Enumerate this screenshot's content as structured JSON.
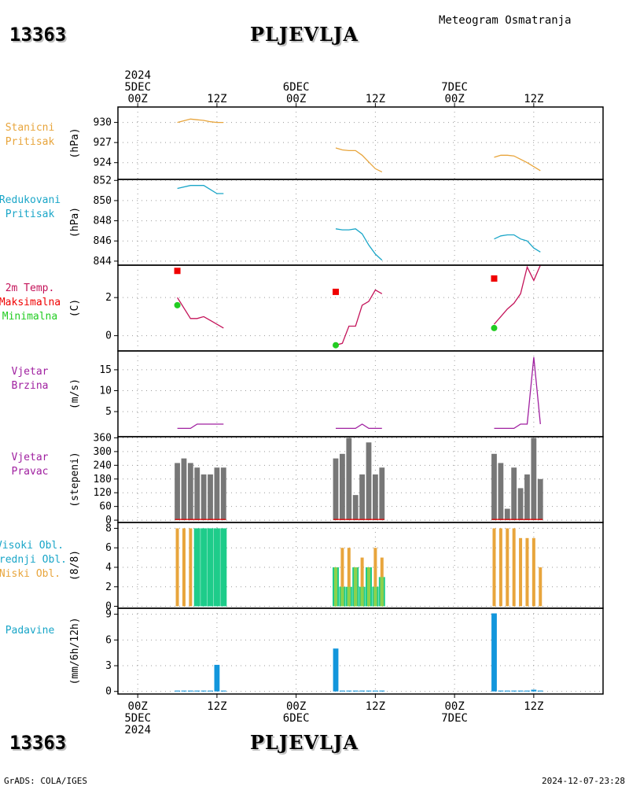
{
  "header": {
    "station_id": "13363",
    "station_name": "PLJEVLJA",
    "title": "Meteogram Osmatranja"
  },
  "footer": {
    "credit": "GrADS: COLA/IGES",
    "timestamp": "2024-12-07-23:28"
  },
  "time_axis": {
    "top_labels": [
      {
        "hour": 0,
        "lines": [
          "2024",
          "5DEC",
          "00Z"
        ]
      },
      {
        "hour": 12,
        "lines": [
          "12Z"
        ]
      },
      {
        "hour": 24,
        "lines": [
          "6DEC",
          "00Z"
        ]
      },
      {
        "hour": 36,
        "lines": [
          "12Z"
        ]
      },
      {
        "hour": 48,
        "lines": [
          "7DEC",
          "00Z"
        ]
      },
      {
        "hour": 60,
        "lines": [
          "12Z"
        ]
      }
    ],
    "bottom_labels": [
      {
        "hour": 0,
        "lines": [
          "00Z",
          "5DEC",
          "2024"
        ]
      },
      {
        "hour": 12,
        "lines": [
          "12Z"
        ]
      },
      {
        "hour": 24,
        "lines": [
          "00Z",
          "6DEC"
        ]
      },
      {
        "hour": 36,
        "lines": [
          "12Z"
        ]
      },
      {
        "hour": 48,
        "lines": [
          "00Z",
          "7DEC"
        ]
      },
      {
        "hour": 60,
        "lines": [
          "12Z"
        ]
      }
    ],
    "range_hours": [
      -3,
      70.5
    ]
  },
  "colors": {
    "orange": "#e8a53c",
    "cyan": "#1aa6c8",
    "magenta": "#c4145a",
    "red": "#f00000",
    "green": "#22cc22",
    "purple": "#a020a0",
    "gray": "#777777",
    "teal": "#1ecc8a",
    "lightgreen": "#8cd24c",
    "blue": "#1296dc"
  },
  "chart_data": [
    {
      "type": "line",
      "panel": "station_pressure",
      "label_lines": [
        {
          "text": "Stanicni",
          "color": "orange"
        },
        {
          "text": "Pritisak",
          "color": "orange"
        }
      ],
      "ylabel": "(hPa)",
      "ylim": [
        921.5,
        932.3
      ],
      "yticks": [
        924,
        927,
        930
      ],
      "series": [
        {
          "color": "orange",
          "x": [
            6,
            8,
            9,
            10,
            11,
            12,
            13
          ],
          "y": [
            930.0,
            930.5,
            930.4,
            930.3,
            930.1,
            930.0,
            930.0
          ]
        },
        {
          "color": "orange",
          "x": [
            30,
            31,
            32,
            33,
            34,
            35,
            36,
            37
          ],
          "y": [
            926.2,
            925.9,
            925.8,
            925.8,
            925.1,
            924.1,
            923.1,
            922.6
          ]
        },
        {
          "color": "orange",
          "x": [
            54,
            55,
            56,
            57,
            58,
            59,
            60,
            61
          ],
          "y": [
            924.8,
            925.1,
            925.1,
            925.0,
            924.5,
            924.0,
            923.4,
            922.8
          ]
        }
      ]
    },
    {
      "type": "line",
      "panel": "reduced_pressure",
      "label_lines": [
        {
          "text": "Redukovani",
          "color": "cyan"
        },
        {
          "text": "Pritisak",
          "color": "cyan"
        }
      ],
      "ylabel": "(hPa)",
      "ylim": [
        843.6,
        852.1
      ],
      "yticks": [
        844,
        846,
        848,
        850,
        852
      ],
      "series": [
        {
          "color": "cyan",
          "x": [
            6,
            8,
            9,
            10,
            11,
            12,
            13
          ],
          "y": [
            851.2,
            851.5,
            851.5,
            851.5,
            851.1,
            850.7,
            850.7
          ]
        },
        {
          "color": "cyan",
          "x": [
            30,
            31,
            32,
            33,
            34,
            35,
            36,
            37
          ],
          "y": [
            847.2,
            847.1,
            847.1,
            847.2,
            846.7,
            845.6,
            844.7,
            844.1
          ]
        },
        {
          "color": "cyan",
          "x": [
            54,
            55,
            56,
            57,
            58,
            59,
            60,
            61
          ],
          "y": [
            846.2,
            846.5,
            846.6,
            846.6,
            846.2,
            846.0,
            845.3,
            844.9
          ]
        }
      ]
    },
    {
      "type": "line",
      "panel": "temperature",
      "label_lines": [
        {
          "text": "2m Temp.",
          "color": "magenta"
        },
        {
          "text": "Maksimalna",
          "color": "red"
        },
        {
          "text": "Minimalna",
          "color": "green"
        }
      ],
      "ylabel": "(C)",
      "ylim": [
        -0.8,
        3.7
      ],
      "yticks": [
        0,
        2
      ],
      "series": [
        {
          "color": "magenta",
          "x": [
            6,
            8,
            9,
            10,
            11,
            12,
            13
          ],
          "y": [
            2.0,
            0.9,
            0.9,
            1.0,
            0.8,
            0.6,
            0.4
          ]
        },
        {
          "color": "magenta",
          "x": [
            30,
            31,
            32,
            33,
            34,
            35,
            36,
            37
          ],
          "y": [
            -0.5,
            -0.4,
            0.5,
            0.5,
            1.6,
            1.8,
            2.4,
            2.2
          ]
        },
        {
          "color": "magenta",
          "x": [
            54,
            55,
            56,
            57,
            58,
            59,
            60,
            61
          ],
          "y": [
            0.6,
            1.0,
            1.4,
            1.7,
            2.2,
            3.6,
            2.9,
            3.7
          ]
        }
      ],
      "max_markers": {
        "color": "red",
        "x": [
          6,
          30,
          54
        ],
        "y": [
          3.4,
          2.3,
          3.0
        ]
      },
      "min_markers": {
        "color": "green",
        "x": [
          6,
          30,
          54
        ],
        "y": [
          1.6,
          -0.5,
          0.4
        ]
      }
    },
    {
      "type": "line",
      "panel": "wind_speed",
      "label_lines": [
        {
          "text": "Vjetar",
          "color": "purple"
        },
        {
          "text": "Brzina",
          "color": "purple"
        }
      ],
      "ylabel": "(m/s)",
      "ylim": [
        -1,
        19.5
      ],
      "yticks": [
        5,
        10,
        15
      ],
      "series": [
        {
          "color": "purple",
          "x": [
            6,
            8,
            9,
            10,
            11,
            12,
            13
          ],
          "y": [
            1,
            1,
            2,
            2,
            2,
            2,
            2
          ]
        },
        {
          "color": "purple",
          "x": [
            30,
            31,
            32,
            33,
            34,
            35,
            36,
            37
          ],
          "y": [
            1,
            1,
            1,
            1,
            2,
            1,
            1,
            1
          ]
        },
        {
          "color": "purple",
          "x": [
            54,
            55,
            56,
            57,
            58,
            59,
            60,
            61
          ],
          "y": [
            1,
            1,
            1,
            1,
            2,
            2,
            18,
            2
          ]
        }
      ]
    },
    {
      "type": "bar",
      "panel": "wind_direction",
      "label_lines": [
        {
          "text": "Vjetar",
          "color": "purple"
        },
        {
          "text": "Pravac",
          "color": "purple"
        }
      ],
      "ylabel": "(stepeni)",
      "ylim": [
        -10,
        365
      ],
      "yticks": [
        0,
        60,
        120,
        180,
        240,
        300,
        360
      ],
      "bar_color": "gray",
      "baseline_color": "red",
      "x": [
        6,
        7,
        8,
        9,
        10,
        11,
        12,
        13,
        30,
        31,
        32,
        33,
        34,
        35,
        36,
        37,
        54,
        55,
        56,
        57,
        58,
        59,
        60,
        61
      ],
      "values": [
        250,
        270,
        250,
        230,
        200,
        200,
        230,
        230,
        270,
        290,
        360,
        110,
        200,
        340,
        200,
        230,
        290,
        250,
        50,
        230,
        140,
        200,
        360,
        180
      ]
    },
    {
      "type": "bar",
      "panel": "cloud_cover",
      "label_lines": [
        {
          "text": "Visoki Obl.",
          "color": "cyan"
        },
        {
          "text": "Srednji Obl.",
          "color": "cyan"
        },
        {
          "text": "Niski Obl.",
          "color": "orange"
        }
      ],
      "ylabel": "(8/8)",
      "ylim": [
        -0.2,
        8.6
      ],
      "yticks": [
        0,
        2,
        4,
        6,
        8
      ],
      "x": [
        6,
        7,
        8,
        9,
        10,
        11,
        12,
        13,
        30,
        31,
        32,
        33,
        34,
        35,
        36,
        37,
        54,
        55,
        56,
        57,
        58,
        59,
        60,
        61
      ],
      "series": [
        {
          "name": "Visoki Obl.",
          "color": "cyan",
          "width": 2,
          "values": [
            0,
            0,
            0,
            0,
            0,
            0,
            0,
            0,
            0,
            0,
            0,
            0,
            0,
            0,
            0,
            0,
            0,
            0,
            0,
            0,
            0,
            0,
            0,
            0
          ]
        },
        {
          "name": "Srednji Obl.",
          "color": "teal",
          "width": 8,
          "values": [
            0,
            0,
            0,
            8,
            8,
            8,
            8,
            8,
            4,
            2,
            2,
            4,
            2,
            4,
            2,
            3,
            0,
            0,
            0,
            0,
            0,
            0,
            0,
            0
          ]
        },
        {
          "name": "Niski Obl.",
          "color": "orange",
          "width": 4,
          "values": [
            8,
            8,
            8,
            0,
            0,
            0,
            0,
            0,
            4,
            6,
            6,
            4,
            5,
            4,
            6,
            5,
            8,
            8,
            8,
            8,
            7,
            7,
            7,
            4
          ]
        }
      ]
    },
    {
      "type": "bar",
      "panel": "precipitation",
      "label_lines": [
        {
          "text": "Padavine",
          "color": "cyan"
        }
      ],
      "ylabel": "(mm/6h/12h)",
      "ylim": [
        -0.3,
        9.7
      ],
      "yticks": [
        0,
        3,
        6,
        9
      ],
      "bar_color": "blue",
      "x": [
        6,
        7,
        8,
        9,
        10,
        11,
        12,
        13,
        30,
        31,
        32,
        33,
        34,
        35,
        36,
        37,
        54,
        55,
        56,
        57,
        58,
        59,
        60,
        61
      ],
      "values": [
        0.1,
        0.1,
        0.1,
        0.1,
        0.1,
        0.1,
        3.1,
        0.1,
        5.0,
        0.1,
        0.1,
        0.1,
        0.1,
        0.1,
        0.1,
        0.1,
        9.1,
        0.1,
        0.1,
        0.1,
        0.1,
        0.1,
        0.2,
        0.1
      ]
    }
  ]
}
